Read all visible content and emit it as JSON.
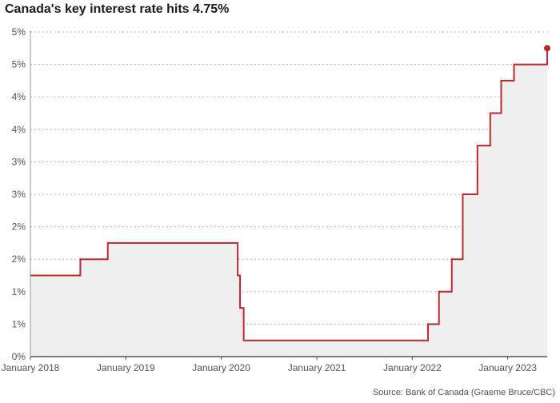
{
  "chart_data": {
    "type": "line",
    "step": "after",
    "title": "Canada's key interest rate hits 4.75%",
    "source": "Source: Bank of Canada (Graeme Bruce/CBC)",
    "y_tick_labels": [
      "0%",
      "1%",
      "1%",
      "2%",
      "2%",
      "3%",
      "3%",
      "4%",
      "4%",
      "5%",
      "5%"
    ],
    "y_tick_values": [
      0,
      0.5,
      1.0,
      1.5,
      2.0,
      2.5,
      3.0,
      3.5,
      4.0,
      4.5,
      5.0
    ],
    "x_tick_labels": [
      "January 2018",
      "January 2019",
      "January 2020",
      "January 2021",
      "January 2022",
      "January 2023"
    ],
    "x_tick_values": [
      "2018-01-01",
      "2019-01-01",
      "2020-01-01",
      "2021-01-01",
      "2022-01-01",
      "2023-01-01"
    ],
    "xlim": [
      "2018-01-01",
      "2023-06-01"
    ],
    "ylim": [
      0,
      5.0
    ],
    "grid": "horizontal dotted",
    "series": [
      {
        "color": "#c0282d",
        "area_color": "#efefef",
        "points": [
          {
            "x": "2018-01-01",
            "y": 1.25
          },
          {
            "x": "2018-07-11",
            "y": 1.5
          },
          {
            "x": "2018-10-24",
            "y": 1.75
          },
          {
            "x": "2020-03-04",
            "y": 1.25
          },
          {
            "x": "2020-03-13",
            "y": 0.75
          },
          {
            "x": "2020-03-27",
            "y": 0.25
          },
          {
            "x": "2022-03-02",
            "y": 0.5
          },
          {
            "x": "2022-04-13",
            "y": 1.0
          },
          {
            "x": "2022-06-01",
            "y": 1.5
          },
          {
            "x": "2022-07-13",
            "y": 2.5
          },
          {
            "x": "2022-09-07",
            "y": 3.25
          },
          {
            "x": "2022-10-26",
            "y": 3.75
          },
          {
            "x": "2022-12-07",
            "y": 4.25
          },
          {
            "x": "2023-01-25",
            "y": 4.5
          },
          {
            "x": "2023-05-31",
            "y": 4.5
          }
        ],
        "end_point": {
          "x": "2023-06-01",
          "y": 4.75
        }
      }
    ]
  }
}
